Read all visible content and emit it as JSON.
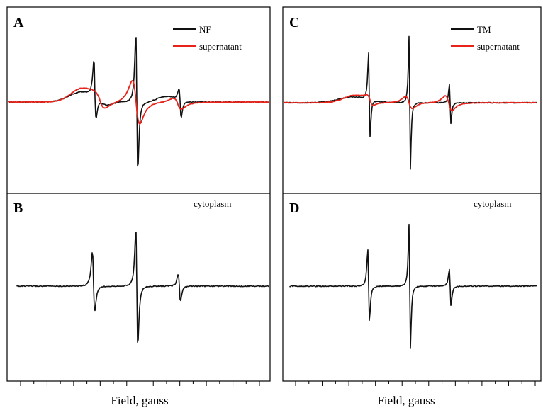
{
  "chart_data": [
    {
      "type": "line",
      "panel": "A",
      "legend": [
        "NF",
        "supernatant"
      ],
      "series": [
        {
          "name": "NF",
          "color": "#111111"
        },
        {
          "name": "supernatant",
          "color": "#e8231a"
        }
      ]
    },
    {
      "type": "line",
      "panel": "B",
      "label": "cytoplasm",
      "xlabel": "Field, gauss",
      "series": [
        {
          "color": "#111111"
        }
      ]
    },
    {
      "type": "line",
      "panel": "C",
      "legend": [
        "TM",
        "supernatant"
      ],
      "series": [
        {
          "name": "TM",
          "color": "#111111"
        },
        {
          "name": "supernatant",
          "color": "#e8231a"
        }
      ]
    },
    {
      "type": "line",
      "panel": "D",
      "label": "cytoplasm",
      "xlabel": "Field, gauss",
      "series": [
        {
          "color": "#111111"
        }
      ]
    }
  ]
}
